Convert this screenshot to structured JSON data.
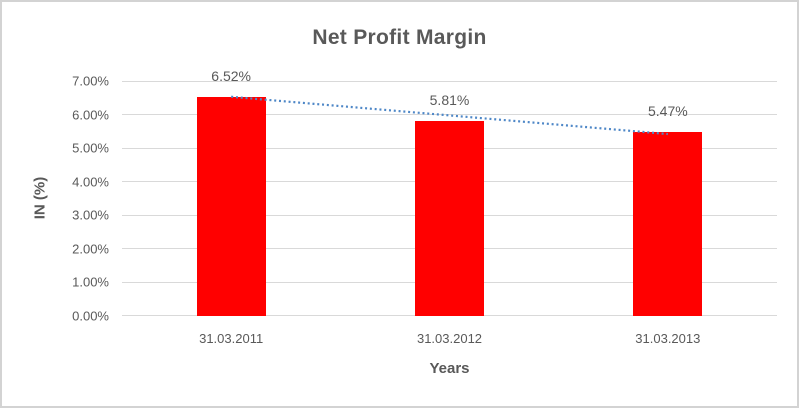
{
  "chart_data": {
    "type": "bar",
    "title": "Net Profit Margin",
    "categories": [
      "31.03.2011",
      "31.03.2012",
      "31.03.2013"
    ],
    "values": [
      6.52,
      5.81,
      5.47
    ],
    "data_labels": [
      "6.52%",
      "5.81%",
      "5.47%"
    ],
    "xlabel": "Years",
    "ylabel": "IN (%)",
    "ylim": [
      0,
      7
    ],
    "ytick_step": 1,
    "ytick_labels": [
      "0.00%",
      "1.00%",
      "2.00%",
      "3.00%",
      "4.00%",
      "5.00%",
      "6.00%",
      "7.00%"
    ],
    "grid": true,
    "legend": "none",
    "bar_color": "#FF0000",
    "trendline": {
      "type": "linear",
      "style": "dotted",
      "color": "#4E87C7",
      "start_value": 6.53,
      "end_value": 5.42
    },
    "text_color": "#595959",
    "gridline_color": "#D9D9D9",
    "frame_border_color": "#D3D3D3"
  }
}
